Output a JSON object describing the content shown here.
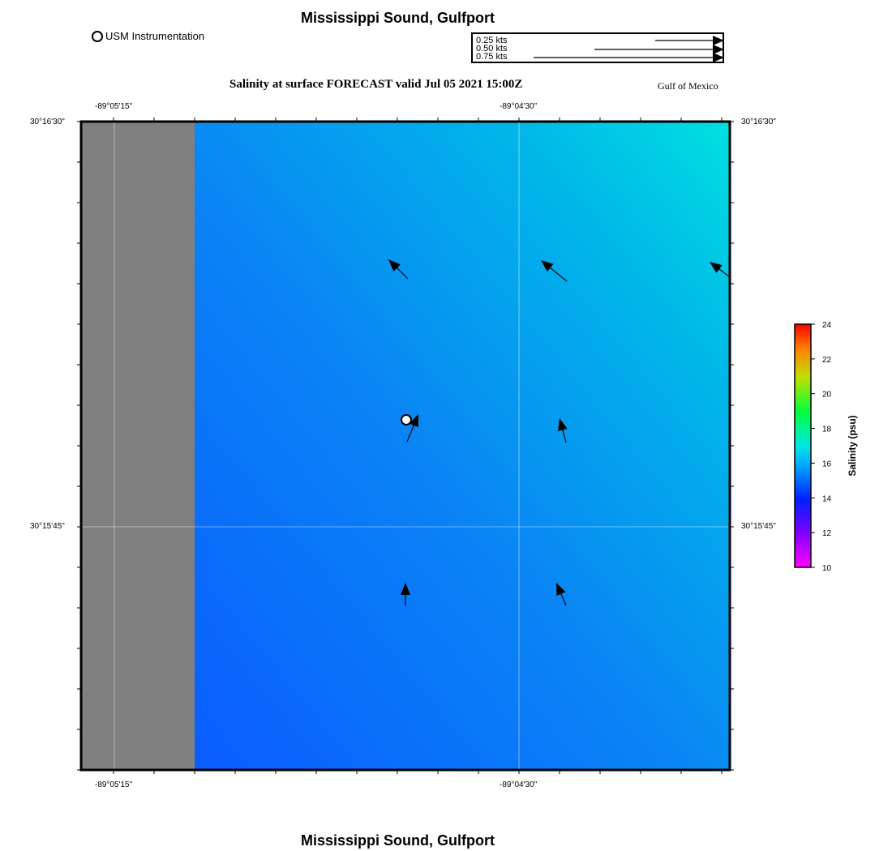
{
  "map": {
    "top_title": "Mississippi Sound, Gulfport",
    "bottom_title": "Mississippi Sound, Gulfport",
    "subtitle": "Salinity at surface FORECAST valid Jul 05 2021 15:00Z",
    "region_label": "Gulf of Mexico",
    "instrument_legend": "USM Instrumentation",
    "lon_ticks": [
      "-89°05'15\"",
      "-89°04'30\""
    ],
    "lat_ticks": [
      "30°16'30\"",
      "30°15'45\""
    ],
    "land_color": "#808080",
    "grid_color": "#ffffff"
  },
  "current_legend": {
    "rows": [
      {
        "label": "0.25 kts",
        "speed": 0.25
      },
      {
        "label": "0.50 kts",
        "speed": 0.5
      },
      {
        "label": "0.75 kts",
        "speed": 0.75
      }
    ]
  },
  "colorbar": {
    "label": "Salinity (psu)",
    "ticks": [
      "24",
      "22",
      "20",
      "18",
      "16",
      "14",
      "12",
      "10"
    ],
    "min": 10,
    "max": 24
  },
  "chart_data": {
    "type": "map",
    "title": "Salinity at surface FORECAST valid Jul 05 2021 15:00Z",
    "variable": "Salinity (psu)",
    "color_range": [
      10,
      24
    ],
    "vectors": [
      {
        "name": "current-vector-1",
        "u": -0.12,
        "v": 0.12
      },
      {
        "name": "current-vector-2",
        "u": -0.16,
        "v": 0.13
      },
      {
        "name": "current-vector-3",
        "u": -0.12,
        "v": 0.09
      },
      {
        "name": "current-vector-4",
        "u": 0.07,
        "v": 0.17
      },
      {
        "name": "current-vector-5",
        "u": -0.04,
        "v": 0.15
      },
      {
        "name": "current-vector-6",
        "u": 0.0,
        "v": 0.14
      },
      {
        "name": "current-vector-7",
        "u": -0.06,
        "v": 0.14
      }
    ]
  }
}
